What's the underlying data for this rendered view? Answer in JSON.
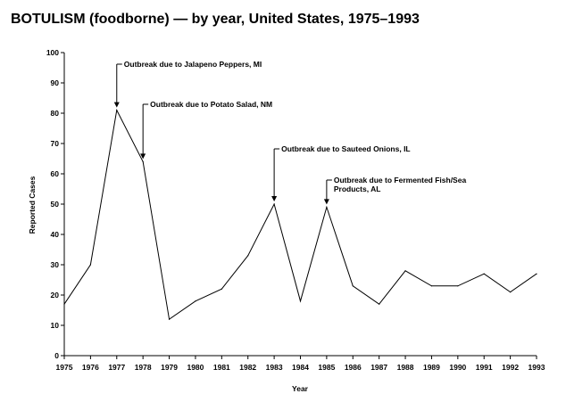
{
  "chart_data": {
    "type": "line",
    "title": "BOTULISM (foodborne) — by year, United States, 1975–1993",
    "xlabel": "Year",
    "ylabel": "Reported Cases",
    "ylim": [
      0,
      100
    ],
    "yticks": [
      "0",
      "10",
      "20",
      "30",
      "40",
      "50",
      "60",
      "70",
      "80",
      "90",
      "100"
    ],
    "categories": [
      "1975",
      "1976",
      "1977",
      "1978",
      "1979",
      "1980",
      "1981",
      "1982",
      "1983",
      "1984",
      "1985",
      "1986",
      "1987",
      "1988",
      "1989",
      "1990",
      "1991",
      "1992",
      "1993"
    ],
    "series": [
      {
        "name": "Reported Cases",
        "values": [
          17,
          30,
          81,
          64,
          12,
          18,
          22,
          33,
          50,
          18,
          49,
          23,
          17,
          28,
          23,
          23,
          27,
          21,
          27
        ]
      }
    ],
    "annotations": [
      {
        "year": "1977",
        "lines": [
          "Outbreak due to Jalapeno Peppers, MI"
        ]
      },
      {
        "year": "1978",
        "lines": [
          "Outbreak due to Potato Salad, NM"
        ]
      },
      {
        "year": "1983",
        "lines": [
          "Outbreak due to Sauteed Onions, IL"
        ]
      },
      {
        "year": "1985",
        "lines": [
          "Outbreak due to Fermented Fish/Sea",
          "Products, AL"
        ]
      }
    ]
  }
}
